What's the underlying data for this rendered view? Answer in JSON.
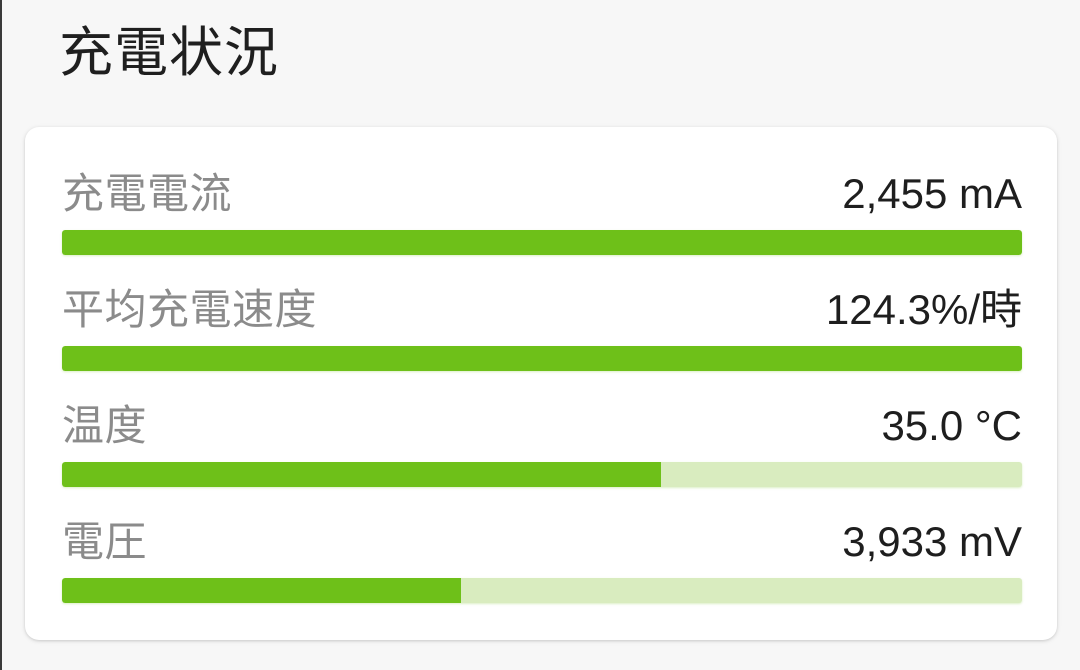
{
  "page": {
    "title": "充電状況"
  },
  "colors": {
    "bar_fill": "#6ec019",
    "bar_track": "#d9ecbf",
    "label_gray": "#8b8b8b",
    "value_dark": "#1e1e1e",
    "background": "#f7f7f7",
    "card_background": "#ffffff"
  },
  "card": {
    "rows": [
      {
        "label": "充電電流",
        "value": "2,455 mA",
        "fill_percent": 100
      },
      {
        "label": "平均充電速度",
        "value": "124.3%/時",
        "fill_percent": 100
      },
      {
        "label": "温度",
        "value": "35.0 °C",
        "fill_percent": 62.4
      },
      {
        "label": "電圧",
        "value": "3,933 mV",
        "fill_percent": 41.6
      }
    ]
  }
}
